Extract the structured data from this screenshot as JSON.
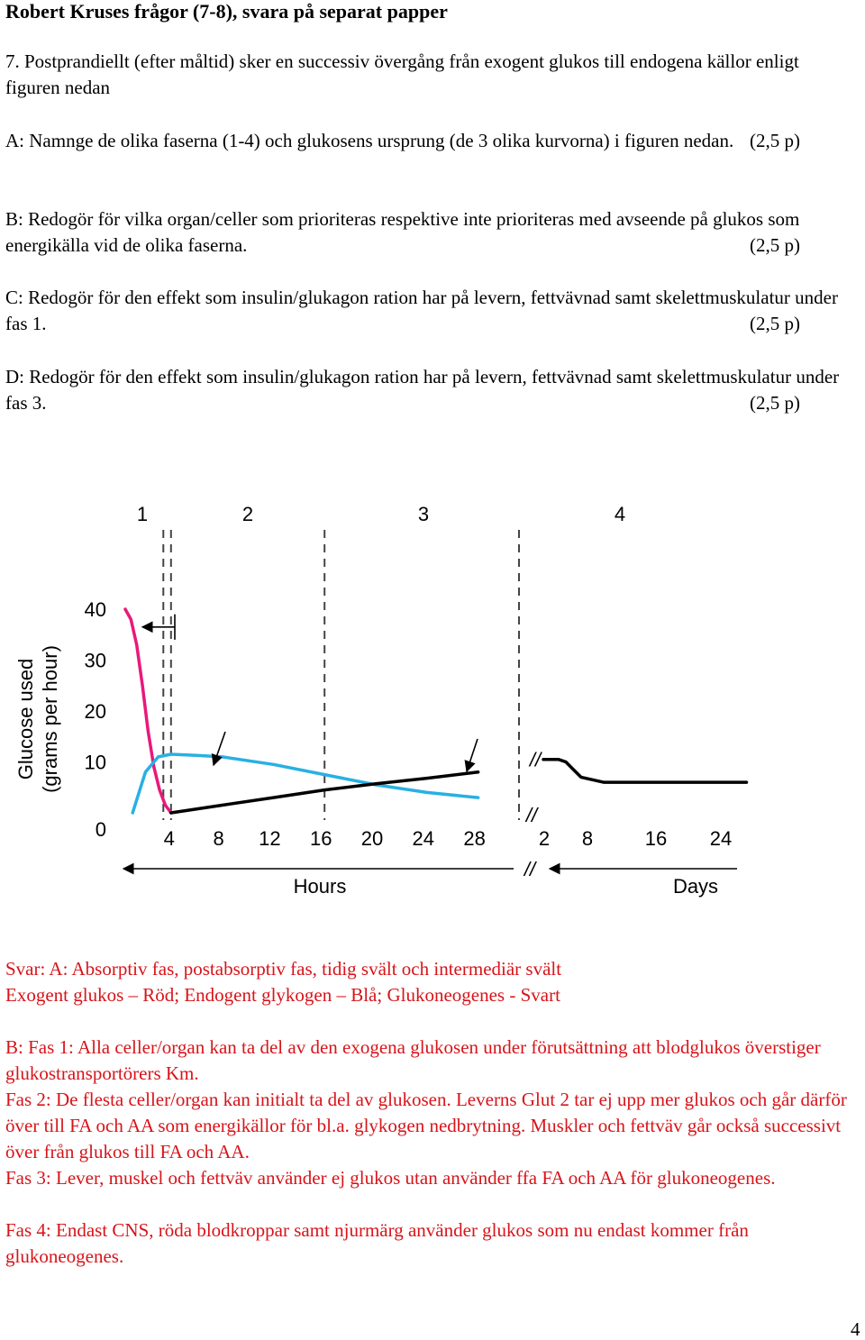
{
  "title": "Robert Kruses frågor (7-8), svara på separat papper",
  "questions": {
    "q7": "7. Postprandiellt (efter måltid) sker en successiv övergång från exogent glukos till endogena källor enligt figuren nedan",
    "a_text": "A: Namnge de olika faserna (1-4) och glukosens ursprung (de 3 olika kurvorna) i figuren nedan.",
    "a_points": "(2,5 p)",
    "b_text": "B: Redogör för vilka organ/celler som prioriteras respektive inte prioriteras med avseende på glukos som energikälla vid de olika faserna.",
    "b_points": "(2,5 p)",
    "c_text": "C: Redogör för den effekt som insulin/glukagon ration har på levern, fettvävnad samt skelettmuskulatur under fas 1.",
    "c_points": "(2,5 p)",
    "d_text": "D: Redogör för den effekt som insulin/glukagon ration har på levern, fettvävnad samt skelettmuskulatur under fas 3.",
    "d_points": "(2,5 p)"
  },
  "chart_data": {
    "type": "line",
    "title": "",
    "ylabel_line1": "Glucose used",
    "ylabel_line2": "(grams per hour)",
    "ylim": [
      0,
      40
    ],
    "yticks": [
      "0",
      "10",
      "20",
      "30",
      "40"
    ],
    "x_hours_ticks": [
      "4",
      "8",
      "12",
      "16",
      "20",
      "24",
      "28"
    ],
    "x_days_ticks": [
      "2",
      "8",
      "16",
      "24"
    ],
    "xlabel_hours": "Hours",
    "xlabel_days": "Days",
    "phases": [
      "1",
      "2",
      "3",
      "4"
    ],
    "colors": {
      "exogenous": "#e8197a",
      "glycogen": "#29b0e3",
      "gluconeogenesis": "#000000"
    },
    "series": [
      {
        "axis": "hours",
        "x": [
          0,
          0.5,
          1,
          1.5,
          2,
          2.5,
          3,
          3.5,
          4
        ],
        "y": [
          40,
          38,
          33,
          25,
          16,
          9,
          4.5,
          1.5,
          0
        ]
      },
      {
        "axis": "hours",
        "x": [
          1,
          1.5,
          2,
          3,
          4,
          6,
          8,
          12,
          16,
          20,
          24,
          28
        ],
        "y": [
          0,
          4,
          8,
          11,
          11.5,
          11.3,
          11,
          9.5,
          7.5,
          5.5,
          4,
          3
        ]
      },
      {
        "axis": "hours",
        "x": [
          4,
          8,
          12,
          16,
          20,
          24,
          28
        ],
        "y": [
          0,
          1.5,
          3,
          4.5,
          5.7,
          6.8,
          8
        ]
      },
      {
        "axis": "days",
        "x": [
          0,
          1,
          2,
          3,
          4,
          5,
          8,
          12,
          16,
          20,
          24,
          27
        ],
        "y": [
          10.5,
          10.5,
          10.5,
          10,
          8.5,
          7,
          6,
          6,
          6,
          6,
          6,
          6
        ]
      }
    ]
  },
  "answer": {
    "line1": "Svar: A: Absorptiv fas, postabsorptiv fas, tidig svält och intermediär svält",
    "line2": "Exogent glukos – Röd; Endogent glykogen – Blå; Glukoneogenes - Svart",
    "b_fas1": "B: Fas 1: Alla celler/organ kan ta del av den exogena glukosen under förutsättning att blodglukos överstiger glukostransportörers Km.",
    "fas2": "Fas 2: De flesta celler/organ kan initialt ta del av glukosen. Leverns Glut 2 tar ej upp mer glukos och går därför över till FA och AA som energikällor för bl.a. glykogen nedbrytning. Muskler och fettväv går också successivt över från glukos till FA och AA.",
    "fas3": "Fas 3: Lever, muskel och fettväv använder ej glukos utan använder ffa FA och AA för glukoneogenes.",
    "fas4": "Fas 4: Endast CNS, röda blodkroppar samt njurmärg använder glukos som nu endast kommer från glukoneogenes."
  },
  "page_number": "4"
}
